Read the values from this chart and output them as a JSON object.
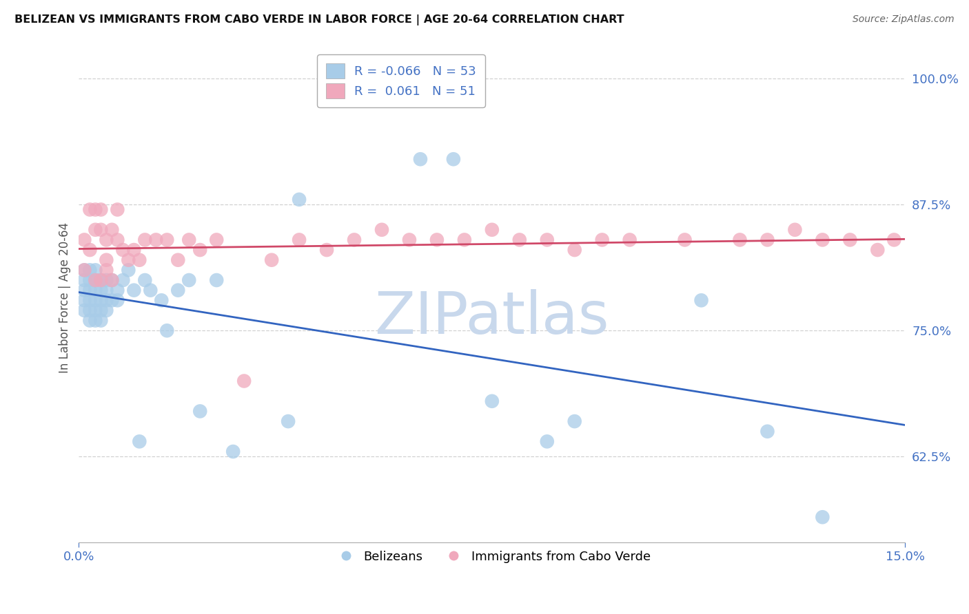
{
  "title": "BELIZEAN VS IMMIGRANTS FROM CABO VERDE IN LABOR FORCE | AGE 20-64 CORRELATION CHART",
  "source": "Source: ZipAtlas.com",
  "ylabel_label": "In Labor Force | Age 20-64",
  "legend_label1": "Belizeans",
  "legend_label2": "Immigrants from Cabo Verde",
  "R1": "-0.066",
  "N1": "53",
  "R2": "0.061",
  "N2": "51",
  "color_blue": "#A8CCE8",
  "color_pink": "#F0A8BC",
  "color_blue_line": "#3264C0",
  "color_pink_line": "#D04868",
  "color_title": "#111111",
  "color_axis_text": "#4472C4",
  "color_watermark": "#C8D8EC",
  "xlim": [
    0.0,
    0.15
  ],
  "ylim": [
    0.54,
    1.025
  ],
  "yticks": [
    0.625,
    0.75,
    0.875,
    1.0
  ],
  "xticks": [
    0.0,
    0.15
  ],
  "blue_x": [
    0.001,
    0.001,
    0.001,
    0.001,
    0.001,
    0.002,
    0.002,
    0.002,
    0.002,
    0.002,
    0.002,
    0.003,
    0.003,
    0.003,
    0.003,
    0.003,
    0.003,
    0.004,
    0.004,
    0.004,
    0.004,
    0.004,
    0.005,
    0.005,
    0.005,
    0.005,
    0.006,
    0.006,
    0.007,
    0.007,
    0.008,
    0.009,
    0.01,
    0.011,
    0.012,
    0.013,
    0.015,
    0.016,
    0.018,
    0.02,
    0.022,
    0.025,
    0.028,
    0.038,
    0.04,
    0.062,
    0.068,
    0.075,
    0.085,
    0.09,
    0.113,
    0.125,
    0.135
  ],
  "blue_y": [
    0.79,
    0.8,
    0.81,
    0.78,
    0.77,
    0.78,
    0.79,
    0.8,
    0.81,
    0.77,
    0.76,
    0.79,
    0.78,
    0.77,
    0.8,
    0.76,
    0.81,
    0.78,
    0.8,
    0.79,
    0.77,
    0.76,
    0.78,
    0.8,
    0.77,
    0.79,
    0.78,
    0.8,
    0.79,
    0.78,
    0.8,
    0.81,
    0.79,
    0.64,
    0.8,
    0.79,
    0.78,
    0.75,
    0.79,
    0.8,
    0.67,
    0.8,
    0.63,
    0.66,
    0.88,
    0.92,
    0.92,
    0.68,
    0.64,
    0.66,
    0.78,
    0.65,
    0.565
  ],
  "pink_x": [
    0.001,
    0.001,
    0.002,
    0.002,
    0.003,
    0.003,
    0.003,
    0.004,
    0.004,
    0.004,
    0.005,
    0.005,
    0.005,
    0.006,
    0.006,
    0.007,
    0.007,
    0.008,
    0.009,
    0.01,
    0.011,
    0.012,
    0.014,
    0.016,
    0.018,
    0.02,
    0.022,
    0.025,
    0.03,
    0.035,
    0.04,
    0.045,
    0.05,
    0.055,
    0.06,
    0.065,
    0.07,
    0.075,
    0.08,
    0.085,
    0.09,
    0.095,
    0.1,
    0.11,
    0.12,
    0.125,
    0.13,
    0.135,
    0.14,
    0.145,
    0.148
  ],
  "pink_y": [
    0.81,
    0.84,
    0.83,
    0.87,
    0.8,
    0.85,
    0.87,
    0.85,
    0.87,
    0.8,
    0.84,
    0.82,
    0.81,
    0.85,
    0.8,
    0.87,
    0.84,
    0.83,
    0.82,
    0.83,
    0.82,
    0.84,
    0.84,
    0.84,
    0.82,
    0.84,
    0.83,
    0.84,
    0.7,
    0.82,
    0.84,
    0.83,
    0.84,
    0.85,
    0.84,
    0.84,
    0.84,
    0.85,
    0.84,
    0.84,
    0.83,
    0.84,
    0.84,
    0.84,
    0.84,
    0.84,
    0.85,
    0.84,
    0.84,
    0.83,
    0.84
  ]
}
